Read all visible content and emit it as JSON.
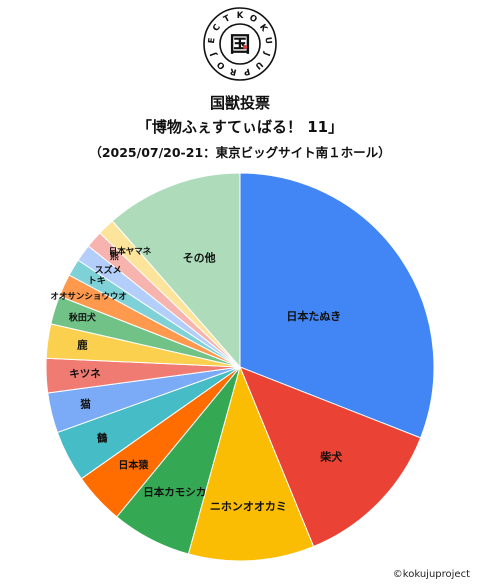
{
  "logo": {
    "ring_text": "KOKUJUPROJECT",
    "center_glyph": "国"
  },
  "header": {
    "title": "国獣投票",
    "subtitle": "「博物ふぇすてぃばる！ 11」",
    "event_info": "（2025/07/20-21：東京ビッグサイト南１ホール）"
  },
  "credit": "©kokujuproject",
  "chart_data": {
    "type": "pie",
    "start_angle_deg": 0,
    "direction": "clockwise",
    "slices": [
      {
        "label": "日本たぬき",
        "value": 32.5,
        "color": "#4285F4",
        "label_color": "#111111"
      },
      {
        "label": "柴犬",
        "value": 13.5,
        "color": "#EA4335",
        "label_color": "#111111"
      },
      {
        "label": "ニホンオオカミ",
        "value": 11.0,
        "color": "#FBBC04",
        "label_color": "#111111"
      },
      {
        "label": "日本カモシカ",
        "value": 7.0,
        "color": "#34A853",
        "label_color": "#111111"
      },
      {
        "label": "日本猿",
        "value": 4.5,
        "color": "#FF6D01",
        "label_color": "#111111"
      },
      {
        "label": "鶴",
        "value": 4.5,
        "color": "#46BDC6",
        "label_color": "#111111"
      },
      {
        "label": "猫",
        "value": 3.5,
        "color": "#7BAAF7",
        "label_color": "#111111"
      },
      {
        "label": "キツネ",
        "value": 3.0,
        "color": "#F07B72",
        "label_color": "#111111"
      },
      {
        "label": "鹿",
        "value": 3.0,
        "color": "#FCD04F",
        "label_color": "#111111"
      },
      {
        "label": "秋田犬",
        "value": 2.5,
        "color": "#71C287",
        "label_color": "#111111"
      },
      {
        "label": "オオサンショウウオ",
        "value": 2.0,
        "color": "#FF994D",
        "label_color": "#111111"
      },
      {
        "label": "トキ",
        "value": 1.5,
        "color": "#7ED1D7",
        "label_color": "#111111"
      },
      {
        "label": "スズメ",
        "value": 1.5,
        "color": "#B3CEFB",
        "label_color": "#111111"
      },
      {
        "label": "熊",
        "value": 1.5,
        "color": "#F7B4AE",
        "label_color": "#111111"
      },
      {
        "label": "日本ヤマネ",
        "value": 1.5,
        "color": "#FDE49B",
        "label_color": "#111111"
      },
      {
        "label": "その他",
        "value": 12.0,
        "color": "#AEDCBA",
        "label_color": "#111111"
      }
    ]
  }
}
